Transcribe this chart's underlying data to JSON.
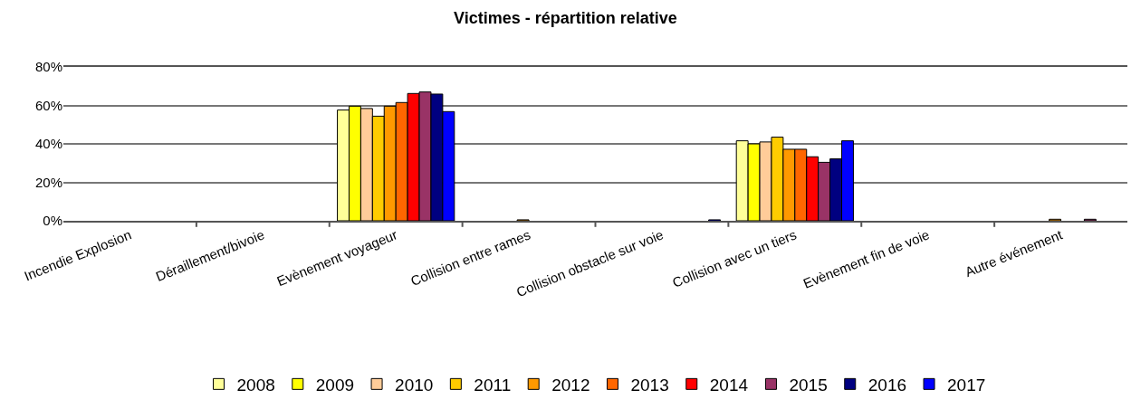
{
  "chart_data": {
    "type": "bar",
    "title": "Victimes - répartition relative",
    "categories": [
      "Incendie Explosion",
      "Déraillement/bivoie",
      "Evènement voyageur",
      "Collision entre rames",
      "Collision obstacle sur voie",
      "Collision avec un tiers",
      "Evènement fin de voie",
      "Autre événement"
    ],
    "series": [
      {
        "name": "2008",
        "color": "#ffff99",
        "values": [
          null,
          null,
          57.6,
          null,
          null,
          41.6,
          null,
          null
        ]
      },
      {
        "name": "2009",
        "color": "#ffff00",
        "values": [
          null,
          null,
          59.6,
          null,
          null,
          40,
          null,
          null
        ]
      },
      {
        "name": "2010",
        "color": "#ffcc99",
        "values": [
          null,
          null,
          58.4,
          null,
          null,
          41,
          null,
          null
        ]
      },
      {
        "name": "2011",
        "color": "#ffcc00",
        "values": [
          null,
          null,
          54.4,
          null,
          null,
          43.5,
          null,
          null
        ]
      },
      {
        "name": "2012",
        "color": "#ff9900",
        "values": [
          null,
          null,
          59.6,
          0.5,
          null,
          37.2,
          null,
          0.8
        ]
      },
      {
        "name": "2013",
        "color": "#ff6600",
        "values": [
          null,
          null,
          61.5,
          null,
          null,
          37.2,
          null,
          null
        ]
      },
      {
        "name": "2014",
        "color": "#ff0000",
        "values": [
          null,
          null,
          66.2,
          null,
          null,
          33.3,
          null,
          null
        ]
      },
      {
        "name": "2015",
        "color": "#993366",
        "values": [
          null,
          null,
          67,
          null,
          null,
          30.4,
          null,
          0.8
        ]
      },
      {
        "name": "2016",
        "color": "#000080",
        "values": [
          null,
          null,
          65.9,
          null,
          null,
          32.2,
          null,
          null
        ]
      },
      {
        "name": "2017",
        "color": "#0000ff",
        "values": [
          null,
          null,
          56.8,
          null,
          0.5,
          41.6,
          null,
          null
        ]
      }
    ],
    "ylim": [
      0,
      80
    ],
    "yticks": [
      {
        "value": 0,
        "label": "0%"
      },
      {
        "value": 20,
        "label": "20%"
      },
      {
        "value": 40,
        "label": "40%"
      },
      {
        "value": 60,
        "label": "60%"
      },
      {
        "value": 80,
        "label": "80%"
      }
    ],
    "grid": "y",
    "legend": "bottom"
  }
}
